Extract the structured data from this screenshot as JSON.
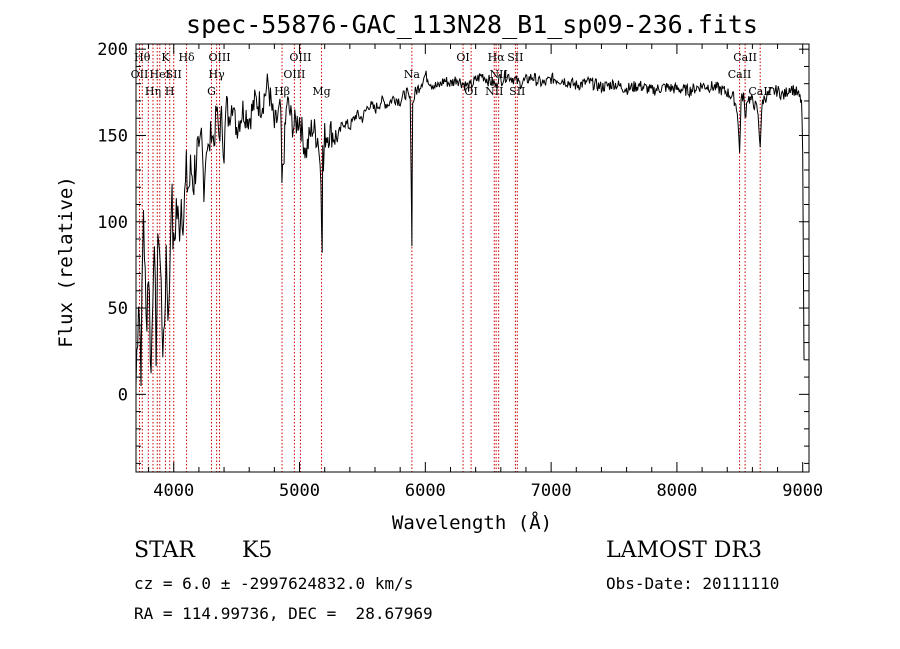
{
  "chart_data": {
    "type": "line",
    "title": "spec-55876-GAC_113N28_B1_sp09-236.fits",
    "xlabel": "Wavelength (Å)",
    "ylabel": "Flux (relative)",
    "xlim": [
      3700,
      9050
    ],
    "ylim": [
      -45,
      203
    ],
    "xticks": [
      4000,
      5000,
      6000,
      7000,
      8000,
      9000
    ],
    "yticks": [
      0,
      50,
      100,
      150,
      200
    ],
    "xtick_labels": [
      "4000",
      "5000",
      "6000",
      "7000",
      "8000",
      "9000"
    ],
    "ytick_labels": [
      "0",
      "50",
      "100",
      "150",
      "200"
    ],
    "grid": false,
    "series": [
      {
        "name": "flux",
        "x": [
          3700,
          3720,
          3740,
          3760,
          3780,
          3800,
          3820,
          3840,
          3860,
          3880,
          3900,
          3920,
          3940,
          3960,
          3980,
          4000,
          4020,
          4040,
          4060,
          4080,
          4100,
          4120,
          4140,
          4160,
          4180,
          4200,
          4220,
          4240,
          4260,
          4280,
          4300,
          4320,
          4340,
          4360,
          4380,
          4400,
          4420,
          4440,
          4460,
          4480,
          4500,
          4550,
          4600,
          4650,
          4700,
          4750,
          4800,
          4850,
          4860,
          4900,
          4950,
          5000,
          5050,
          5100,
          5150,
          5170,
          5180,
          5184,
          5190,
          5200,
          5250,
          5300,
          5350,
          5400,
          5450,
          5500,
          5550,
          5600,
          5650,
          5700,
          5750,
          5800,
          5850,
          5880,
          5890,
          5893,
          5896,
          5900,
          5920,
          5950,
          6000,
          6050,
          6100,
          6150,
          6200,
          6250,
          6300,
          6350,
          6400,
          6450,
          6500,
          6550,
          6563,
          6580,
          6600,
          6650,
          6700,
          6750,
          6800,
          6850,
          6900,
          6950,
          7000,
          7100,
          7200,
          7300,
          7400,
          7500,
          7600,
          7700,
          7800,
          7900,
          8000,
          8100,
          8200,
          8300,
          8400,
          8450,
          8480,
          8498,
          8510,
          8530,
          8542,
          8560,
          8600,
          8640,
          8662,
          8680,
          8700,
          8750,
          8800,
          8850,
          8900,
          8950,
          8990,
          9000,
          9010
        ],
        "y": [
          5,
          60,
          20,
          110,
          40,
          75,
          10,
          90,
          30,
          100,
          60,
          20,
          85,
          40,
          120,
          80,
          110,
          95,
          115,
          105,
          125,
          120,
          130,
          125,
          140,
          135,
          150,
          120,
          145,
          140,
          155,
          145,
          165,
          150,
          160,
          140,
          170,
          155,
          175,
          160,
          155,
          165,
          160,
          170,
          168,
          180,
          155,
          165,
          120,
          170,
          155,
          160,
          140,
          155,
          148,
          125,
          90,
          140,
          130,
          150,
          152,
          148,
          158,
          155,
          162,
          160,
          168,
          165,
          170,
          168,
          172,
          170,
          175,
          170,
          110,
          85,
          130,
          168,
          175,
          178,
          185,
          180,
          178,
          182,
          180,
          183,
          180,
          178,
          182,
          185,
          182,
          180,
          178,
          184,
          182,
          185,
          183,
          180,
          182,
          184,
          181,
          180,
          183,
          182,
          179,
          181,
          178,
          180,
          177,
          179,
          176,
          178,
          177,
          176,
          179,
          178,
          175,
          172,
          165,
          140,
          170,
          174,
          160,
          172,
          170,
          165,
          145,
          170,
          172,
          175,
          176,
          173,
          178,
          175,
          170,
          140,
          20
        ]
      }
    ],
    "lines": [
      {
        "wavelength": 3728,
        "label": "OII",
        "row": 1
      },
      {
        "wavelength": 3750,
        "label": "Hθ",
        "row": 0
      },
      {
        "wavelength": 3798,
        "label": "",
        "row": -1
      },
      {
        "wavelength": 3835,
        "label": "Hη",
        "row": 2
      },
      {
        "wavelength": 3869,
        "label": "",
        "row": -1
      },
      {
        "wavelength": 3889,
        "label": "HeI",
        "row": 1
      },
      {
        "wavelength": 3934,
        "label": "K",
        "row": 0
      },
      {
        "wavelength": 3968,
        "label": "H",
        "row": 2
      },
      {
        "wavelength": 4000,
        "label": "SII",
        "row": 1
      },
      {
        "wavelength": 4102,
        "label": "Hδ",
        "row": 0
      },
      {
        "wavelength": 4300,
        "label": "G",
        "row": 2
      },
      {
        "wavelength": 4341,
        "label": "Hγ",
        "row": 1
      },
      {
        "wavelength": 4364,
        "label": "OIII",
        "row": 0
      },
      {
        "wavelength": 4861,
        "label": "Hβ",
        "row": 2
      },
      {
        "wavelength": 4959,
        "label": "OIII",
        "row": 1
      },
      {
        "wavelength": 5007,
        "label": "OIII",
        "row": 0
      },
      {
        "wavelength": 5175,
        "label": "Mg",
        "row": 2
      },
      {
        "wavelength": 5893,
        "label": "Na",
        "row": 1
      },
      {
        "wavelength": 6300,
        "label": "OI",
        "row": 0
      },
      {
        "wavelength": 6364,
        "label": "OI",
        "row": 2
      },
      {
        "wavelength": 6548,
        "label": "NII",
        "row": 2
      },
      {
        "wavelength": 6563,
        "label": "Hα",
        "row": 0
      },
      {
        "wavelength": 6583,
        "label": "NII",
        "row": 1
      },
      {
        "wavelength": 6716,
        "label": "SII",
        "row": 0
      },
      {
        "wavelength": 6731,
        "label": "SII",
        "row": 2
      },
      {
        "wavelength": 8498,
        "label": "CaII",
        "row": 1
      },
      {
        "wavelength": 8542,
        "label": "CaII",
        "row": 0
      },
      {
        "wavelength": 8662,
        "label": "CaII",
        "row": 2
      }
    ],
    "line_color": "#cc0000"
  },
  "info": {
    "object_type": "STAR",
    "subclass": "K5",
    "survey": "LAMOST DR3",
    "cz_line": "cz = 6.0 ± -2997624832.0 km/s",
    "obs_date": "Obs-Date: 20111110",
    "radec": "RA = 114.99736, DEC =  28.67969"
  }
}
